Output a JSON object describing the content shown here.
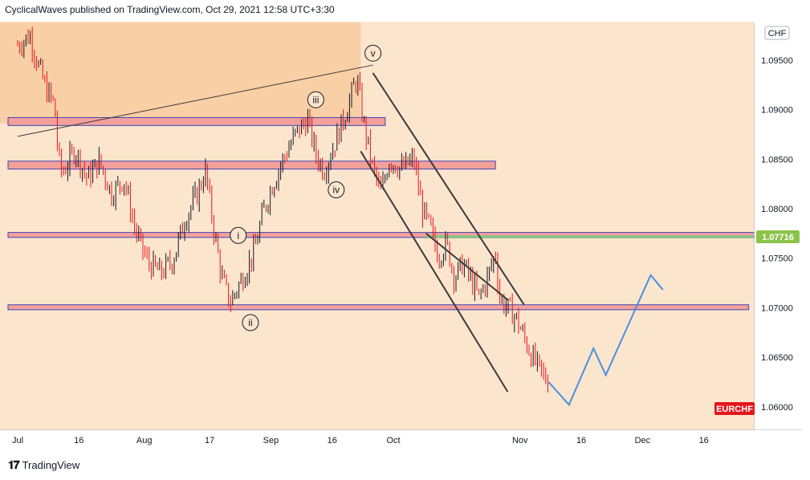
{
  "header": {
    "publish_line": "CyclicalWaves published on TradingView.com, Oct 29, 2021 12:58 UTC+3:30"
  },
  "footer": {
    "brand": "TradingView",
    "brand_icon": "tradingview-logo-icon"
  },
  "colors": {
    "background": "#fce5cd",
    "shaded_zone": "#f9cfa6",
    "zone_fill": "#f4a09a",
    "zone_border": "#3f46b8",
    "green_line": "#8fc18a",
    "candle_up": "#131722",
    "candle_down": "#e4161a",
    "trendline": "#3a3a3a",
    "projection": "#4a90e2",
    "price_badge": "#8bc34a",
    "symbol_badge": "#e4161a"
  },
  "chart_data": {
    "type": "candlestick",
    "symbol": "EURCHF",
    "currency": "CHF",
    "current_marker_price": "1.07716",
    "x_tick_labels": [
      "Jul",
      "16",
      "Aug",
      "17",
      "Sep",
      "16",
      "Oct",
      "Nov",
      "16",
      "Dec",
      "16"
    ],
    "y_tick_labels": [
      "1.09500",
      "1.09000",
      "1.08500",
      "1.08000",
      "1.07500",
      "1.07000",
      "1.06500",
      "1.06000"
    ],
    "y_ticks": [
      1.095,
      1.09,
      1.085,
      1.08,
      1.075,
      1.07,
      1.065,
      1.06
    ],
    "ylim": [
      1.0582,
      1.0988
    ],
    "x_range": [
      "2021-07-01",
      "2021-12-31"
    ],
    "price_path": [
      [
        "2021-07-01",
        1.0965
      ],
      [
        "2021-07-04",
        1.0975
      ],
      [
        "2021-07-06",
        1.0945
      ],
      [
        "2021-07-08",
        1.092
      ],
      [
        "2021-07-10",
        1.0905
      ],
      [
        "2021-07-11",
        1.085
      ],
      [
        "2021-07-12",
        1.0835
      ],
      [
        "2021-07-15",
        1.086
      ],
      [
        "2021-07-18",
        1.083
      ],
      [
        "2021-07-21",
        1.0848
      ],
      [
        "2021-07-24",
        1.0815
      ],
      [
        "2021-07-27",
        1.083
      ],
      [
        "2021-07-30",
        1.0775
      ],
      [
        "2021-08-02",
        1.0745
      ],
      [
        "2021-08-05",
        1.0735
      ],
      [
        "2021-08-08",
        1.0748
      ],
      [
        "2021-08-11",
        1.079
      ],
      [
        "2021-08-14",
        1.0815
      ],
      [
        "2021-08-16",
        1.0838
      ],
      [
        "2021-08-18",
        1.078
      ],
      [
        "2021-08-20",
        1.073
      ],
      [
        "2021-08-22",
        1.0705
      ],
      [
        "2021-08-25",
        1.073
      ],
      [
        "2021-08-28",
        1.0758
      ],
      [
        "2021-08-30",
        1.0795
      ],
      [
        "2021-09-01",
        1.082
      ],
      [
        "2021-09-04",
        1.085
      ],
      [
        "2021-09-07",
        1.0875
      ],
      [
        "2021-09-10",
        1.089
      ],
      [
        "2021-09-12",
        1.0855
      ],
      [
        "2021-09-14",
        1.0838
      ],
      [
        "2021-09-17",
        1.087
      ],
      [
        "2021-09-20",
        1.0905
      ],
      [
        "2021-09-22",
        1.0932
      ],
      [
        "2021-09-24",
        1.088
      ],
      [
        "2021-09-26",
        1.084
      ],
      [
        "2021-09-28",
        1.0815
      ],
      [
        "2021-09-30",
        1.085
      ],
      [
        "2021-10-03",
        1.084
      ],
      [
        "2021-10-06",
        1.085
      ],
      [
        "2021-10-08",
        1.08
      ],
      [
        "2021-10-10",
        1.078
      ],
      [
        "2021-10-12",
        1.0752
      ],
      [
        "2021-10-14",
        1.0765
      ],
      [
        "2021-10-16",
        1.073
      ],
      [
        "2021-10-18",
        1.0745
      ],
      [
        "2021-10-20",
        1.0728
      ],
      [
        "2021-10-22",
        1.071
      ],
      [
        "2021-10-24",
        1.073
      ],
      [
        "2021-10-26",
        1.0755
      ],
      [
        "2021-10-27",
        1.071
      ],
      [
        "2021-10-29",
        1.07
      ],
      [
        "2021-10-31",
        1.069
      ],
      [
        "2021-11-02",
        1.067
      ],
      [
        "2021-11-04",
        1.065
      ],
      [
        "2021-11-06",
        1.0636
      ],
      [
        "2021-11-08",
        1.0624
      ]
    ],
    "horizontal_zones": [
      {
        "from": "2021-07-01",
        "to": "2021-09-29",
        "high": 1.0892,
        "low": 1.0884
      },
      {
        "from": "2021-07-01",
        "to": "2021-10-26",
        "high": 1.0848,
        "low": 1.084
      },
      {
        "from": "2021-07-01",
        "to": "2021-12-31",
        "high": 1.0776,
        "low": 1.0771
      },
      {
        "from": "2021-07-01",
        "to": "2021-12-27",
        "high": 1.0703,
        "low": 1.0698
      }
    ],
    "green_level": {
      "from": "2021-10-09",
      "to": "2021-12-31",
      "value": 1.07716
    },
    "shaded_zone": {
      "from": "2021-07-01",
      "to": "2021-09-23",
      "top": 1.0988,
      "bottom": 1.0886
    },
    "wave_labels": [
      {
        "label": "i",
        "date": "2021-08-24",
        "price": 1.0773
      },
      {
        "label": "ii",
        "date": "2021-08-27",
        "price": 1.0685
      },
      {
        "label": "iii",
        "date": "2021-09-12",
        "price": 1.091
      },
      {
        "label": "iv",
        "date": "2021-09-17",
        "price": 1.0819
      },
      {
        "label": "v",
        "date": "2021-09-26",
        "price": 1.0957
      }
    ],
    "lines": [
      {
        "name": "rising-trendline",
        "points": [
          [
            "2021-07-01",
            1.0873
          ],
          [
            "2021-09-26",
            1.0945
          ]
        ]
      },
      {
        "name": "channel-upper",
        "points": [
          [
            "2021-09-26",
            1.0937
          ],
          [
            "2021-11-02",
            1.0703
          ]
        ]
      },
      {
        "name": "channel-lower",
        "points": [
          [
            "2021-09-23",
            1.0858
          ],
          [
            "2021-10-29",
            1.0615
          ]
        ]
      },
      {
        "name": "diagonal-inner",
        "points": [
          [
            "2021-10-09",
            1.0775
          ],
          [
            "2021-10-29",
            1.0708
          ]
        ]
      },
      {
        "name": "projection",
        "points": [
          [
            "2021-11-08",
            1.0625
          ],
          [
            "2021-11-13",
            1.0602
          ],
          [
            "2021-11-19",
            1.0659
          ],
          [
            "2021-11-22",
            1.0632
          ],
          [
            "2021-12-03",
            1.0733
          ],
          [
            "2021-12-06",
            1.0718
          ]
        ]
      }
    ]
  }
}
